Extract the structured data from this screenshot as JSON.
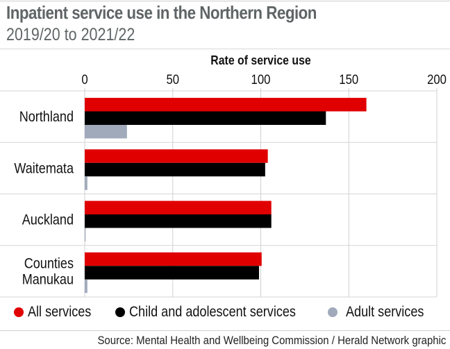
{
  "chart_data": {
    "type": "bar",
    "orientation": "horizontal",
    "title": "Inpatient service use in the Northern Region",
    "subtitle": "2019/20 to 2021/22",
    "xlabel": "Rate of service use",
    "ylabel": "",
    "xlim": [
      0,
      200
    ],
    "xticks": [
      "0",
      "50",
      "100",
      "150",
      "200"
    ],
    "xtick_values": [
      0,
      50,
      100,
      150,
      200
    ],
    "grid": true,
    "legend_position": "bottom",
    "categories": [
      [
        "Northland"
      ],
      [
        "Waitemata"
      ],
      [
        "Auckland"
      ],
      [
        "Counties",
        "Manukau"
      ]
    ],
    "series": [
      {
        "name": "All services",
        "color": "#e00000",
        "values": [
          160,
          104,
          106,
          100.5
        ]
      },
      {
        "name": "Child and adolescent services",
        "color": "#000000",
        "values": [
          137,
          102.5,
          106,
          99
        ]
      },
      {
        "name": "Adult services",
        "color": "#a0aabb",
        "values": [
          24,
          1.5,
          0.5,
          1.5
        ]
      }
    ]
  },
  "source": "Source: Mental Health and Wellbeing Commission / Herald Network graphic"
}
